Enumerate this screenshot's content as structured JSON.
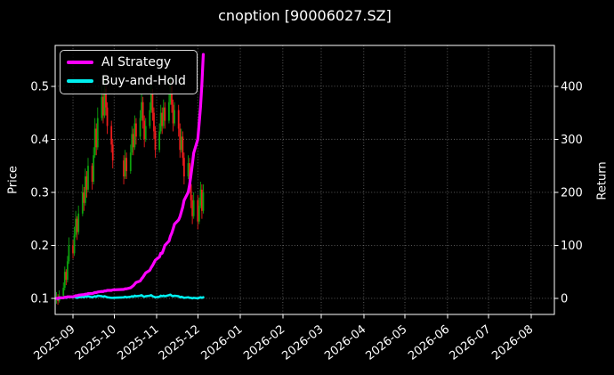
{
  "title": "cnoption [90006027.SZ]",
  "chart_data": {
    "type": "candlestick+line",
    "title": "cnoption [90006027.SZ]",
    "ylabel_left": "Price",
    "ylabel_right": "Return",
    "x_tick_labels": [
      "2025-09",
      "2025-10",
      "2025-11",
      "2025-12",
      "2026-01",
      "2026-02",
      "2026-03",
      "2026-04",
      "2026-05",
      "2026-06",
      "2026-07",
      "2026-08"
    ],
    "xlim": [
      "2025-08-19",
      "2026-08-18"
    ],
    "price_ticks": [
      "0.1",
      "0.2",
      "0.3",
      "0.4",
      "0.5"
    ],
    "ylim_price": [
      0.0697,
      0.577
    ],
    "return_ticks": [
      "0",
      "100",
      "200",
      "300",
      "400"
    ],
    "ylim_return": [
      -30.3,
      477
    ],
    "grid": "dotted",
    "legend_position": "upper-left",
    "colors": {
      "up_candle": "#0da10d",
      "down_candle": "#ef1c1c",
      "grid": "#666666",
      "spine": "#ffffff",
      "text": "#ffffff",
      "background": "#000000"
    },
    "dates": [
      "2025-08-20",
      "2025-08-21",
      "2025-08-22",
      "2025-08-25",
      "2025-08-26",
      "2025-08-27",
      "2025-08-28",
      "2025-08-29",
      "2025-09-01",
      "2025-09-02",
      "2025-09-03",
      "2025-09-04",
      "2025-09-05",
      "2025-09-08",
      "2025-09-09",
      "2025-09-10",
      "2025-09-11",
      "2025-09-12",
      "2025-09-15",
      "2025-09-16",
      "2025-09-17",
      "2025-09-18",
      "2025-09-19",
      "2025-09-22",
      "2025-09-23",
      "2025-09-24",
      "2025-09-25",
      "2025-09-26",
      "2025-09-29",
      "2025-09-30",
      "2025-10-08",
      "2025-10-09",
      "2025-10-10",
      "2025-10-13",
      "2025-10-14",
      "2025-10-15",
      "2025-10-16",
      "2025-10-17",
      "2025-10-20",
      "2025-10-21",
      "2025-10-22",
      "2025-10-23",
      "2025-10-24",
      "2025-10-27",
      "2025-10-28",
      "2025-10-29",
      "2025-10-30",
      "2025-10-31",
      "2025-11-03",
      "2025-11-04",
      "2025-11-05",
      "2025-11-06",
      "2025-11-07",
      "2025-11-10",
      "2025-11-11",
      "2025-11-12",
      "2025-11-13",
      "2025-11-14",
      "2025-11-17",
      "2025-11-18",
      "2025-11-19",
      "2025-11-20",
      "2025-11-21",
      "2025-11-24",
      "2025-11-25",
      "2025-11-26",
      "2025-11-27",
      "2025-11-28",
      "2025-12-01",
      "2025-12-02",
      "2025-12-03",
      "2025-12-04",
      "2025-12-05"
    ],
    "ohlc": [
      [
        0.098,
        0.112,
        0.09,
        0.1
      ],
      [
        0.1,
        0.108,
        0.088,
        0.095
      ],
      [
        0.095,
        0.115,
        0.092,
        0.105
      ],
      [
        0.105,
        0.13,
        0.1,
        0.12
      ],
      [
        0.12,
        0.16,
        0.115,
        0.15
      ],
      [
        0.15,
        0.155,
        0.125,
        0.135
      ],
      [
        0.135,
        0.18,
        0.13,
        0.17
      ],
      [
        0.17,
        0.215,
        0.165,
        0.2
      ],
      [
        0.2,
        0.21,
        0.175,
        0.185
      ],
      [
        0.185,
        0.235,
        0.18,
        0.22
      ],
      [
        0.22,
        0.265,
        0.215,
        0.25
      ],
      [
        0.25,
        0.255,
        0.21,
        0.225
      ],
      [
        0.225,
        0.275,
        0.22,
        0.26
      ],
      [
        0.26,
        0.315,
        0.255,
        0.3
      ],
      [
        0.3,
        0.31,
        0.265,
        0.28
      ],
      [
        0.28,
        0.345,
        0.275,
        0.33
      ],
      [
        0.33,
        0.34,
        0.29,
        0.305
      ],
      [
        0.305,
        0.365,
        0.3,
        0.35
      ],
      [
        0.35,
        0.355,
        0.305,
        0.32
      ],
      [
        0.32,
        0.385,
        0.315,
        0.37
      ],
      [
        0.37,
        0.44,
        0.365,
        0.42
      ],
      [
        0.42,
        0.43,
        0.37,
        0.385
      ],
      [
        0.385,
        0.46,
        0.38,
        0.44
      ],
      [
        0.44,
        0.5,
        0.435,
        0.48
      ],
      [
        0.48,
        0.49,
        0.43,
        0.445
      ],
      [
        0.445,
        0.52,
        0.44,
        0.495
      ],
      [
        0.495,
        0.505,
        0.445,
        0.46
      ],
      [
        0.46,
        0.47,
        0.41,
        0.425
      ],
      [
        0.425,
        0.435,
        0.375,
        0.39
      ],
      [
        0.39,
        0.4,
        0.345,
        0.36
      ],
      [
        0.36,
        0.37,
        0.315,
        0.33
      ],
      [
        0.33,
        0.38,
        0.325,
        0.365
      ],
      [
        0.365,
        0.375,
        0.325,
        0.34
      ],
      [
        0.34,
        0.39,
        0.335,
        0.375
      ],
      [
        0.375,
        0.425,
        0.37,
        0.41
      ],
      [
        0.41,
        0.42,
        0.37,
        0.385
      ],
      [
        0.385,
        0.445,
        0.38,
        0.43
      ],
      [
        0.43,
        0.44,
        0.39,
        0.405
      ],
      [
        0.405,
        0.455,
        0.4,
        0.44
      ],
      [
        0.44,
        0.485,
        0.435,
        0.47
      ],
      [
        0.47,
        0.48,
        0.42,
        0.435
      ],
      [
        0.435,
        0.445,
        0.385,
        0.4
      ],
      [
        0.4,
        0.44,
        0.395,
        0.425
      ],
      [
        0.425,
        0.47,
        0.42,
        0.455
      ],
      [
        0.455,
        0.505,
        0.45,
        0.485
      ],
      [
        0.485,
        0.495,
        0.435,
        0.45
      ],
      [
        0.45,
        0.46,
        0.4,
        0.415
      ],
      [
        0.415,
        0.425,
        0.365,
        0.38
      ],
      [
        0.38,
        0.43,
        0.375,
        0.415
      ],
      [
        0.415,
        0.465,
        0.41,
        0.45
      ],
      [
        0.45,
        0.46,
        0.41,
        0.425
      ],
      [
        0.425,
        0.475,
        0.42,
        0.46
      ],
      [
        0.46,
        0.47,
        0.42,
        0.435
      ],
      [
        0.435,
        0.485,
        0.43,
        0.47
      ],
      [
        0.47,
        0.52,
        0.465,
        0.5
      ],
      [
        0.5,
        0.51,
        0.45,
        0.465
      ],
      [
        0.465,
        0.475,
        0.415,
        0.43
      ],
      [
        0.43,
        0.47,
        0.425,
        0.455
      ],
      [
        0.455,
        0.465,
        0.405,
        0.42
      ],
      [
        0.42,
        0.43,
        0.365,
        0.38
      ],
      [
        0.38,
        0.42,
        0.375,
        0.405
      ],
      [
        0.405,
        0.415,
        0.35,
        0.365
      ],
      [
        0.365,
        0.375,
        0.315,
        0.33
      ],
      [
        0.33,
        0.37,
        0.325,
        0.355
      ],
      [
        0.355,
        0.365,
        0.3,
        0.315
      ],
      [
        0.315,
        0.325,
        0.27,
        0.285
      ],
      [
        0.285,
        0.295,
        0.24,
        0.255
      ],
      [
        0.255,
        0.3,
        0.25,
        0.285
      ],
      [
        0.285,
        0.295,
        0.23,
        0.245
      ],
      [
        0.245,
        0.29,
        0.24,
        0.275
      ],
      [
        0.275,
        0.32,
        0.27,
        0.305
      ],
      [
        0.305,
        0.315,
        0.25,
        0.265
      ],
      [
        0.265,
        0.315,
        0.26,
        0.3
      ]
    ],
    "series": [
      {
        "name": "AI Strategy",
        "color": "#ff00ff",
        "axis": "return",
        "values": [
          0,
          0,
          1,
          1,
          2,
          2,
          3,
          3,
          3,
          4,
          5,
          5,
          6,
          7,
          7,
          8,
          8,
          9,
          9,
          10,
          11,
          11,
          12,
          13,
          13,
          14,
          14,
          15,
          15,
          16,
          17,
          18,
          18,
          20,
          22,
          24,
          27,
          30,
          33,
          37,
          40,
          44,
          48,
          53,
          58,
          62,
          67,
          72,
          78,
          85,
          85,
          92,
          100,
          108,
          117,
          123,
          131,
          140,
          148,
          154,
          163,
          172,
          185,
          200,
          214,
          232,
          252,
          274,
          300,
          330,
          362,
          405,
          460
        ]
      },
      {
        "name": "Buy-and-Hold",
        "color": "#00efef",
        "axis": "return",
        "values": [
          0,
          -1,
          0,
          1,
          2,
          1,
          2,
          3,
          2,
          3,
          2,
          1,
          2,
          3,
          2,
          4,
          3,
          4,
          2,
          3,
          4,
          3,
          5,
          4,
          3,
          4,
          3,
          2,
          1,
          1,
          2,
          3,
          2,
          3,
          4,
          3,
          5,
          4,
          5,
          6,
          4,
          3,
          4,
          5,
          6,
          4,
          3,
          2,
          3,
          5,
          4,
          5,
          4,
          6,
          7,
          5,
          4,
          5,
          4,
          2,
          3,
          2,
          1,
          2,
          1,
          1,
          0,
          1,
          0,
          1,
          2,
          1,
          2
        ]
      }
    ]
  }
}
